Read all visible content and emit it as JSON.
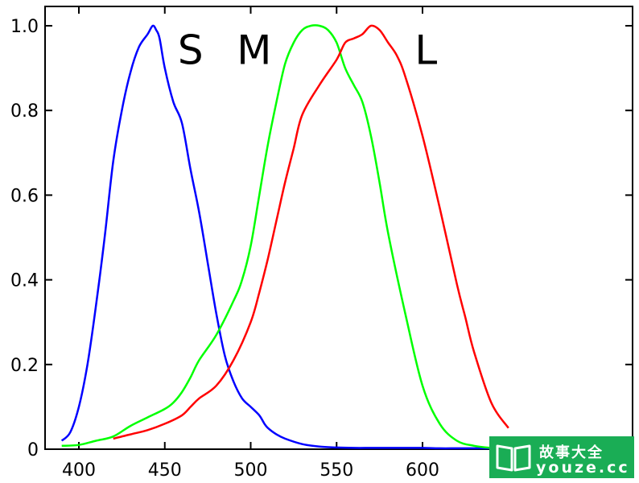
{
  "chart_data": {
    "type": "line",
    "title": "",
    "xlabel": "",
    "ylabel": "",
    "xlim": [
      390,
      650
    ],
    "ylim": [
      0,
      1.05
    ],
    "xticks": [
      400,
      450,
      500,
      550,
      600
    ],
    "xtick_labels": [
      "400",
      "450",
      "500",
      "550",
      "600"
    ],
    "yticks": [
      0,
      0.2,
      0.4,
      0.6,
      0.8,
      1.0
    ],
    "ytick_labels": [
      "0",
      "0.2",
      "0.4",
      "0.6",
      "0.8",
      "1.0"
    ],
    "grid": false,
    "curve_labels": [
      {
        "text": "S",
        "x": 465,
        "y": 0.91
      },
      {
        "text": "M",
        "x": 502,
        "y": 0.91
      },
      {
        "text": "L",
        "x": 602,
        "y": 0.91
      }
    ],
    "series": [
      {
        "color": "#0000ff",
        "x": [
          390,
          395,
          400,
          405,
          410,
          415,
          420,
          425,
          430,
          435,
          440,
          443,
          445,
          447,
          450,
          455,
          460,
          465,
          470,
          475,
          480,
          485,
          490,
          495,
          500,
          505,
          508,
          510,
          515,
          520,
          530,
          540,
          550,
          560,
          570,
          580,
          590,
          600,
          610,
          620,
          630,
          640,
          650
        ],
        "y": [
          0.02,
          0.04,
          0.1,
          0.2,
          0.34,
          0.5,
          0.68,
          0.8,
          0.89,
          0.95,
          0.98,
          1.0,
          0.99,
          0.97,
          0.9,
          0.82,
          0.77,
          0.66,
          0.56,
          0.44,
          0.32,
          0.22,
          0.16,
          0.12,
          0.1,
          0.08,
          0.06,
          0.05,
          0.035,
          0.025,
          0.012,
          0.006,
          0.004,
          0.003,
          0.003,
          0.003,
          0.003,
          0.003,
          0.002,
          0.002,
          0.002,
          0.002,
          0.002
        ]
      },
      {
        "color": "#00ff00",
        "x": [
          390,
          400,
          410,
          420,
          430,
          440,
          450,
          455,
          460,
          465,
          470,
          480,
          490,
          495,
          500,
          505,
          510,
          515,
          520,
          525,
          530,
          535,
          540,
          545,
          550,
          555,
          560,
          565,
          570,
          575,
          580,
          590,
          600,
          610,
          620,
          630,
          640,
          650
        ],
        "y": [
          0.008,
          0.01,
          0.02,
          0.03,
          0.055,
          0.075,
          0.095,
          0.11,
          0.135,
          0.17,
          0.21,
          0.27,
          0.35,
          0.4,
          0.48,
          0.6,
          0.72,
          0.82,
          0.91,
          0.96,
          0.99,
          1.0,
          1.0,
          0.99,
          0.96,
          0.9,
          0.86,
          0.82,
          0.74,
          0.63,
          0.51,
          0.32,
          0.15,
          0.06,
          0.02,
          0.008,
          0.003,
          0.001
        ]
      },
      {
        "color": "#ff0000",
        "x": [
          420,
          430,
          440,
          450,
          460,
          465,
          470,
          480,
          490,
          500,
          505,
          510,
          515,
          520,
          525,
          530,
          540,
          550,
          555,
          560,
          565,
          570,
          575,
          580,
          585,
          590,
          600,
          610,
          620,
          625,
          630,
          640,
          650
        ],
        "y": [
          0.025,
          0.035,
          0.045,
          0.06,
          0.08,
          0.1,
          0.12,
          0.15,
          0.21,
          0.3,
          0.37,
          0.45,
          0.54,
          0.63,
          0.71,
          0.79,
          0.86,
          0.92,
          0.96,
          0.97,
          0.98,
          1.0,
          0.99,
          0.96,
          0.93,
          0.88,
          0.74,
          0.57,
          0.39,
          0.31,
          0.23,
          0.11,
          0.05
        ]
      }
    ]
  },
  "watermark": {
    "line1": "故事大全",
    "line2": "youze.cc",
    "color": "#1aad55"
  }
}
